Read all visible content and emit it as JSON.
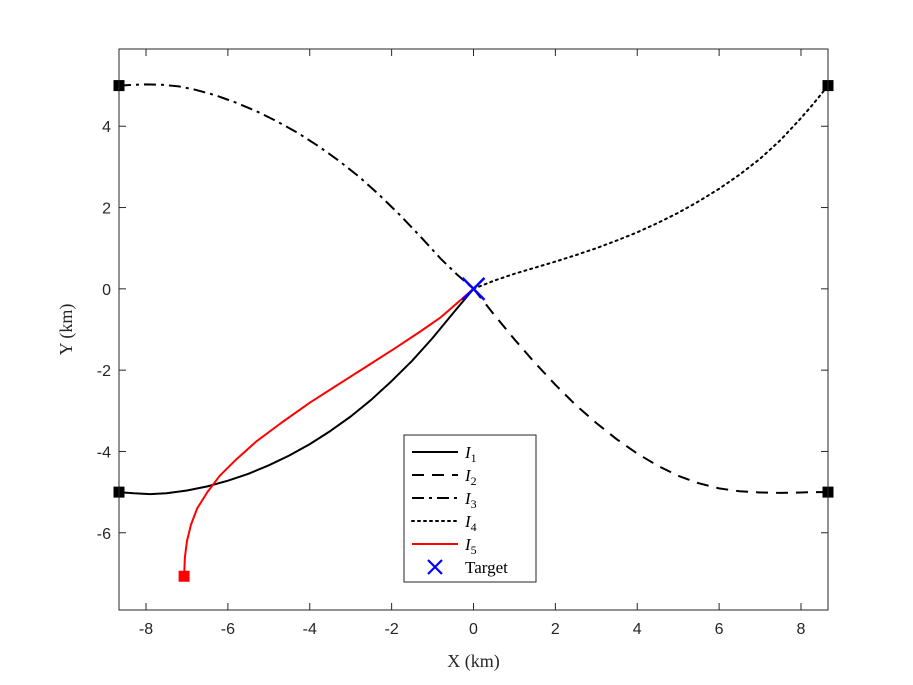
{
  "chart_data": {
    "type": "line",
    "xlabel": "X (km)",
    "ylabel": "Y (km)",
    "xlim": [
      -8.66,
      8.66
    ],
    "ylim": [
      -7.9,
      5.9
    ],
    "xticks": [
      -8,
      -6,
      -4,
      -2,
      0,
      2,
      4,
      6,
      8
    ],
    "yticks": [
      -6,
      -4,
      -2,
      0,
      2,
      4
    ],
    "grid": false,
    "legend_position": "bottom-center",
    "series": [
      {
        "name": "I",
        "subscript": "1",
        "style": "solid",
        "color": "#000000",
        "x": [
          -8.66,
          -8.3,
          -7.9,
          -7.5,
          -7.0,
          -6.5,
          -6.0,
          -5.5,
          -5.0,
          -4.5,
          -4.0,
          -3.5,
          -3.0,
          -2.5,
          -2.0,
          -1.5,
          -1.0,
          -0.5,
          0.0
        ],
        "y": [
          -5.0,
          -5.03,
          -5.05,
          -5.03,
          -4.96,
          -4.86,
          -4.72,
          -4.55,
          -4.34,
          -4.1,
          -3.82,
          -3.5,
          -3.14,
          -2.73,
          -2.27,
          -1.77,
          -1.21,
          -0.6,
          0.0
        ]
      },
      {
        "name": "I",
        "subscript": "2",
        "style": "dashed",
        "color": "#000000",
        "x": [
          0.0,
          0.5,
          1.0,
          1.5,
          2.0,
          2.5,
          3.0,
          3.5,
          4.0,
          4.5,
          5.0,
          5.5,
          6.0,
          6.5,
          7.0,
          7.5,
          8.0,
          8.3,
          8.66
        ],
        "y": [
          0.0,
          -0.63,
          -1.24,
          -1.82,
          -2.36,
          -2.86,
          -3.3,
          -3.7,
          -4.05,
          -4.35,
          -4.6,
          -4.78,
          -4.91,
          -4.98,
          -5.01,
          -5.02,
          -5.01,
          -5.0,
          -5.0
        ]
      },
      {
        "name": "I",
        "subscript": "3",
        "style": "dashdot",
        "color": "#000000",
        "x": [
          -8.66,
          -8.3,
          -8.0,
          -7.6,
          -7.2,
          -6.8,
          -6.3,
          -5.8,
          -5.3,
          -4.8,
          -4.3,
          -3.8,
          -3.3,
          -2.8,
          -2.3,
          -1.8,
          -1.3,
          -0.8,
          -0.4,
          0.0
        ],
        "y": [
          5.0,
          5.02,
          5.03,
          5.02,
          4.98,
          4.9,
          4.76,
          4.58,
          4.37,
          4.12,
          3.84,
          3.52,
          3.16,
          2.76,
          2.31,
          1.82,
          1.29,
          0.74,
          0.35,
          0.0
        ]
      },
      {
        "name": "I",
        "subscript": "4",
        "style": "dotted",
        "color": "#000000",
        "x": [
          0.0,
          0.5,
          1.0,
          1.5,
          2.0,
          2.5,
          3.0,
          3.5,
          4.0,
          4.5,
          5.0,
          5.5,
          6.0,
          6.5,
          7.0,
          7.5,
          8.0,
          8.3,
          8.5,
          8.66
        ],
        "y": [
          0.0,
          0.2,
          0.37,
          0.52,
          0.67,
          0.83,
          1.0,
          1.19,
          1.39,
          1.62,
          1.87,
          2.15,
          2.46,
          2.81,
          3.2,
          3.66,
          4.2,
          4.55,
          4.8,
          5.0
        ]
      },
      {
        "name": "I",
        "subscript": "5",
        "style": "solid",
        "color": "#ff0000",
        "x": [
          -7.07,
          -7.05,
          -7.0,
          -6.9,
          -6.75,
          -6.5,
          -6.2,
          -5.8,
          -5.3,
          -4.7,
          -4.0,
          -3.3,
          -2.6,
          -1.9,
          -1.3,
          -0.8,
          -0.4,
          0.0
        ],
        "y": [
          -7.07,
          -6.6,
          -6.2,
          -5.8,
          -5.4,
          -5.0,
          -4.6,
          -4.2,
          -3.75,
          -3.3,
          -2.8,
          -2.35,
          -1.9,
          -1.45,
          -1.05,
          -0.7,
          -0.35,
          0.0
        ]
      }
    ],
    "markers": [
      {
        "kind": "start",
        "shape": "square",
        "color": "#000000",
        "x": -8.66,
        "y": -5.0
      },
      {
        "kind": "start",
        "shape": "square",
        "color": "#000000",
        "x": 8.66,
        "y": -5.0
      },
      {
        "kind": "start",
        "shape": "square",
        "color": "#000000",
        "x": -8.66,
        "y": 5.0
      },
      {
        "kind": "start",
        "shape": "square",
        "color": "#000000",
        "x": 8.66,
        "y": 5.0
      },
      {
        "kind": "start",
        "shape": "square",
        "color": "#ff0000",
        "x": -7.07,
        "y": -7.07
      }
    ],
    "target": {
      "name": "Target",
      "shape": "x",
      "color": "#0000ff",
      "x": 0.0,
      "y": 0.0
    }
  }
}
